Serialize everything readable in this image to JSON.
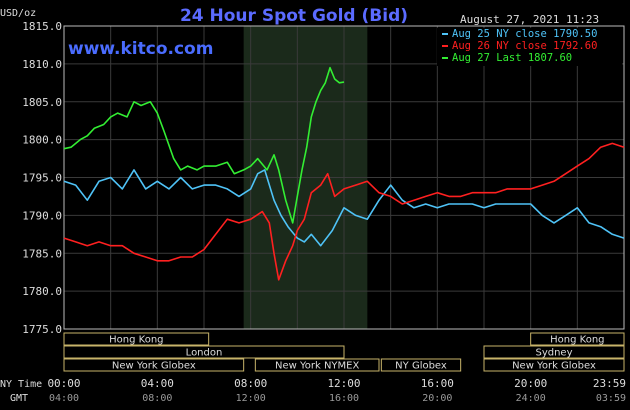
{
  "chart_data": {
    "type": "line",
    "title": "24 Hour Spot Gold (Bid)",
    "y_unit_label": "USD/oz",
    "timestamp": "August 27, 2021 11:23",
    "watermark": "www.kitco.com",
    "ylim": [
      1775.0,
      1815.0
    ],
    "y_ticks": [
      "1815.0",
      "1810.0",
      "1805.0",
      "1800.0",
      "1795.0",
      "1790.0",
      "1785.0",
      "1780.0",
      "1775.0"
    ],
    "x_axis_labels": {
      "ny_time_label": "NY Time",
      "gmt_label": "GMT",
      "ny_time": [
        "00:00",
        "04:00",
        "08:00",
        "12:00",
        "16:00",
        "20:00",
        "23:59"
      ],
      "gmt": [
        "04:00",
        "08:00",
        "12:00",
        "16:00",
        "20:00",
        "24:00",
        "03:59"
      ]
    },
    "x_range_hours": [
      0,
      24
    ],
    "highlight_hours": [
      7.7,
      13.0
    ],
    "grid": true,
    "legend_position": "top-right",
    "series": [
      {
        "name": "Aug 25 NY close 1790.50",
        "color": "#4fc3f7",
        "x": [
          0,
          0.5,
          1,
          1.5,
          2,
          2.5,
          3,
          3.5,
          4,
          4.5,
          5,
          5.5,
          6,
          6.5,
          7,
          7.5,
          8,
          8.3,
          8.6,
          9,
          9.3,
          9.6,
          10,
          10.3,
          10.6,
          11,
          11.5,
          12,
          12.5,
          13,
          13.5,
          14,
          14.5,
          15,
          15.5,
          16,
          16.5,
          17,
          17.5,
          18,
          18.5,
          19,
          19.5,
          20,
          20.5,
          21,
          21.5,
          22,
          22.5,
          23,
          23.5,
          24
        ],
        "values": [
          1794.5,
          1794.0,
          1792.0,
          1794.5,
          1795.0,
          1793.5,
          1796.0,
          1793.5,
          1794.5,
          1793.5,
          1795.0,
          1793.5,
          1794.0,
          1794.0,
          1793.5,
          1792.5,
          1793.5,
          1795.5,
          1796.0,
          1792.0,
          1790.0,
          1788.5,
          1787.0,
          1786.5,
          1787.5,
          1786.0,
          1788.0,
          1791.0,
          1790.0,
          1789.5,
          1792.0,
          1794.0,
          1792.0,
          1791.0,
          1791.5,
          1791.0,
          1791.5,
          1791.5,
          1791.5,
          1791.0,
          1791.5,
          1791.5,
          1791.5,
          1791.5,
          1790.0,
          1789.0,
          1790.0,
          1791.0,
          1789.0,
          1788.5,
          1787.5,
          1787.0
        ]
      },
      {
        "name": "Aug 26 NY close 1792.60",
        "color": "#ff2020",
        "x": [
          0,
          0.5,
          1,
          1.5,
          2,
          2.5,
          3,
          3.5,
          4,
          4.5,
          5,
          5.5,
          6,
          6.5,
          7,
          7.5,
          8,
          8.5,
          8.8,
          9,
          9.2,
          9.5,
          9.8,
          10,
          10.3,
          10.6,
          11,
          11.3,
          11.6,
          12,
          12.5,
          13,
          13.5,
          14,
          14.5,
          15,
          15.5,
          16,
          16.5,
          17,
          17.5,
          18,
          18.5,
          19,
          19.5,
          20,
          20.5,
          21,
          21.5,
          22,
          22.5,
          23,
          23.5,
          24
        ],
        "values": [
          1787.0,
          1786.5,
          1786.0,
          1786.5,
          1786.0,
          1786.0,
          1785.0,
          1784.5,
          1784.0,
          1784.0,
          1784.5,
          1784.5,
          1785.5,
          1787.5,
          1789.5,
          1789.0,
          1789.5,
          1790.5,
          1789.0,
          1785.0,
          1781.5,
          1784.0,
          1786.0,
          1788.0,
          1789.5,
          1793.0,
          1794.0,
          1795.5,
          1792.5,
          1793.5,
          1794.0,
          1794.5,
          1793.0,
          1792.5,
          1791.5,
          1792.0,
          1792.5,
          1793.0,
          1792.5,
          1792.5,
          1793.0,
          1793.0,
          1793.0,
          1793.5,
          1793.5,
          1793.5,
          1794.0,
          1794.5,
          1795.5,
          1796.5,
          1797.5,
          1799.0,
          1799.5,
          1799.0
        ]
      },
      {
        "name": "Aug 27 Last 1807.60",
        "color": "#33ee33",
        "x": [
          0,
          0.3,
          0.7,
          1,
          1.3,
          1.7,
          2,
          2.3,
          2.7,
          3,
          3.3,
          3.7,
          4,
          4.3,
          4.7,
          5,
          5.3,
          5.7,
          6,
          6.5,
          7,
          7.3,
          7.7,
          8,
          8.3,
          8.7,
          9,
          9.2,
          9.5,
          9.8,
          10,
          10.2,
          10.4,
          10.6,
          10.8,
          11,
          11.2,
          11.4,
          11.6,
          11.8,
          12
        ],
        "values": [
          1798.8,
          1799.0,
          1800.0,
          1800.5,
          1801.5,
          1802.0,
          1803.0,
          1803.5,
          1803.0,
          1805.0,
          1804.5,
          1805.0,
          1803.5,
          1801.0,
          1797.5,
          1796.0,
          1796.5,
          1796.0,
          1796.5,
          1796.5,
          1797.0,
          1795.5,
          1796.0,
          1796.5,
          1797.5,
          1796.0,
          1798.0,
          1796.0,
          1792.0,
          1789.0,
          1792.5,
          1796.0,
          1799.0,
          1803.0,
          1805.0,
          1806.5,
          1807.5,
          1809.5,
          1808.0,
          1807.5,
          1807.6
        ]
      }
    ],
    "market_sessions": [
      {
        "name": "Hong Kong",
        "start": 0.0,
        "end": 6.2,
        "row": 0
      },
      {
        "name": "London",
        "start": 0.0,
        "end": 12.0,
        "row": 1
      },
      {
        "name": "New York Globex",
        "start": 0.0,
        "end": 7.7,
        "row": 2
      },
      {
        "name": "New York NYMEX",
        "start": 8.2,
        "end": 13.5,
        "row": 2
      },
      {
        "name": "NY Globex",
        "start": 13.6,
        "end": 17.0,
        "row": 2
      },
      {
        "name": "Hong Kong",
        "start": 20.0,
        "end": 24.0,
        "row": 0
      },
      {
        "name": "Sydney",
        "start": 18.0,
        "end": 24.0,
        "row": 1
      },
      {
        "name": "New York Globex",
        "start": 18.0,
        "end": 24.0,
        "row": 2
      }
    ]
  }
}
